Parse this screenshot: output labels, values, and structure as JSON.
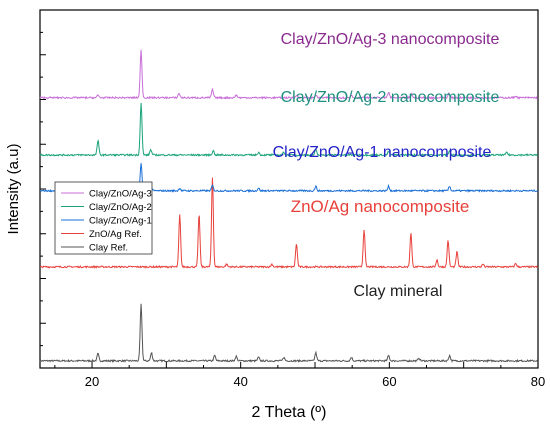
{
  "chart_data": {
    "type": "line",
    "title": "",
    "xlabel": "2 Theta (º)",
    "ylabel": "Intensity (a.u)",
    "xlim": [
      13,
      80
    ],
    "x_ticks": [
      20,
      40,
      60,
      80
    ],
    "y_tick_labels": "none",
    "grid": false,
    "legend_position": "middle-left",
    "series": [
      {
        "name": "Clay Ref.",
        "label": "Clay mineral",
        "color": "#555555",
        "baseline": 0.8,
        "peaks": [
          [
            20.8,
            0.8
          ],
          [
            26.6,
            6.3
          ],
          [
            28.0,
            0.9
          ],
          [
            36.5,
            0.6
          ],
          [
            39.4,
            0.5
          ],
          [
            42.4,
            0.4
          ],
          [
            45.8,
            0.4
          ],
          [
            50.1,
            0.9
          ],
          [
            54.9,
            0.4
          ],
          [
            59.9,
            0.6
          ],
          [
            64.0,
            0.3
          ],
          [
            68.1,
            0.6
          ]
        ]
      },
      {
        "name": "ZnO/Ag Ref.",
        "label": "ZnO/Ag nanocomposite",
        "color": "#e8413b",
        "baseline": 11.3,
        "peaks": [
          [
            31.8,
            5.8
          ],
          [
            34.4,
            5.9
          ],
          [
            36.2,
            10.0
          ],
          [
            38.1,
            0.3
          ],
          [
            44.2,
            0.3
          ],
          [
            47.5,
            2.6
          ],
          [
            56.6,
            4.2
          ],
          [
            62.9,
            3.8
          ],
          [
            66.4,
            0.8
          ],
          [
            67.9,
            3.0
          ],
          [
            69.1,
            1.7
          ],
          [
            72.6,
            0.3
          ],
          [
            77.0,
            0.4
          ]
        ]
      },
      {
        "name": "Clay/ZnO/Ag-1",
        "label": "Clay/ZnO/Ag-1 nanocomposite",
        "color": "#1a6fd6",
        "baseline": 19.8,
        "peaks": [
          [
            20.8,
            0.7
          ],
          [
            26.6,
            3.0
          ],
          [
            27.9,
            0.8
          ],
          [
            31.8,
            0.3
          ],
          [
            36.2,
            0.6
          ],
          [
            42.4,
            0.3
          ],
          [
            50.1,
            0.5
          ],
          [
            59.9,
            0.5
          ],
          [
            68.1,
            0.5
          ]
        ]
      },
      {
        "name": "Clay/ZnO/Ag-2",
        "label": "Clay/ZnO/Ag-2 nanocomposite",
        "color": "#1aa37a",
        "baseline": 23.8,
        "peaks": [
          [
            20.8,
            1.6
          ],
          [
            26.6,
            5.8
          ],
          [
            27.9,
            0.6
          ],
          [
            36.3,
            0.5
          ],
          [
            42.4,
            0.3
          ],
          [
            45.8,
            0.3
          ],
          [
            50.1,
            0.6
          ],
          [
            59.9,
            0.4
          ],
          [
            68.1,
            0.5
          ],
          [
            75.8,
            0.3
          ]
        ]
      },
      {
        "name": "Clay/ZnO/Ag-3",
        "label": "Clay/ZnO/Ag-3 nanocomposite",
        "color": "#c86ed8",
        "baseline": 30.2,
        "peaks": [
          [
            20.8,
            0.3
          ],
          [
            26.6,
            5.3
          ],
          [
            31.7,
            0.5
          ],
          [
            36.2,
            0.9
          ],
          [
            39.4,
            0.3
          ],
          [
            47.5,
            0.3
          ],
          [
            50.1,
            0.3
          ],
          [
            54.9,
            0.3
          ],
          [
            59.9,
            0.6
          ],
          [
            63.0,
            0.4
          ],
          [
            68.0,
            0.5
          ],
          [
            77.0,
            0.2
          ]
        ]
      }
    ],
    "annotations": [
      {
        "text": "Clay/ZnO/Ag-3 nanocomposite",
        "color": "#8a2a8f"
      },
      {
        "text": "Clay/ZnO/Ag-2 nanocomposite",
        "color": "#1f8f7f"
      },
      {
        "text": "Clay/ZnO/Ag-1 nanocomposite",
        "color": "#2323c8"
      },
      {
        "text": "ZnO/Ag nanocomposite",
        "color": "#e8413b"
      },
      {
        "text": "Clay mineral",
        "color": "#222222"
      }
    ],
    "legend": [
      "Clay/ZnO/Ag-3",
      "Clay/ZnO/Ag-2",
      "Clay/ZnO/Ag-1",
      "ZnO/Ag Ref.",
      "Clay Ref."
    ]
  }
}
